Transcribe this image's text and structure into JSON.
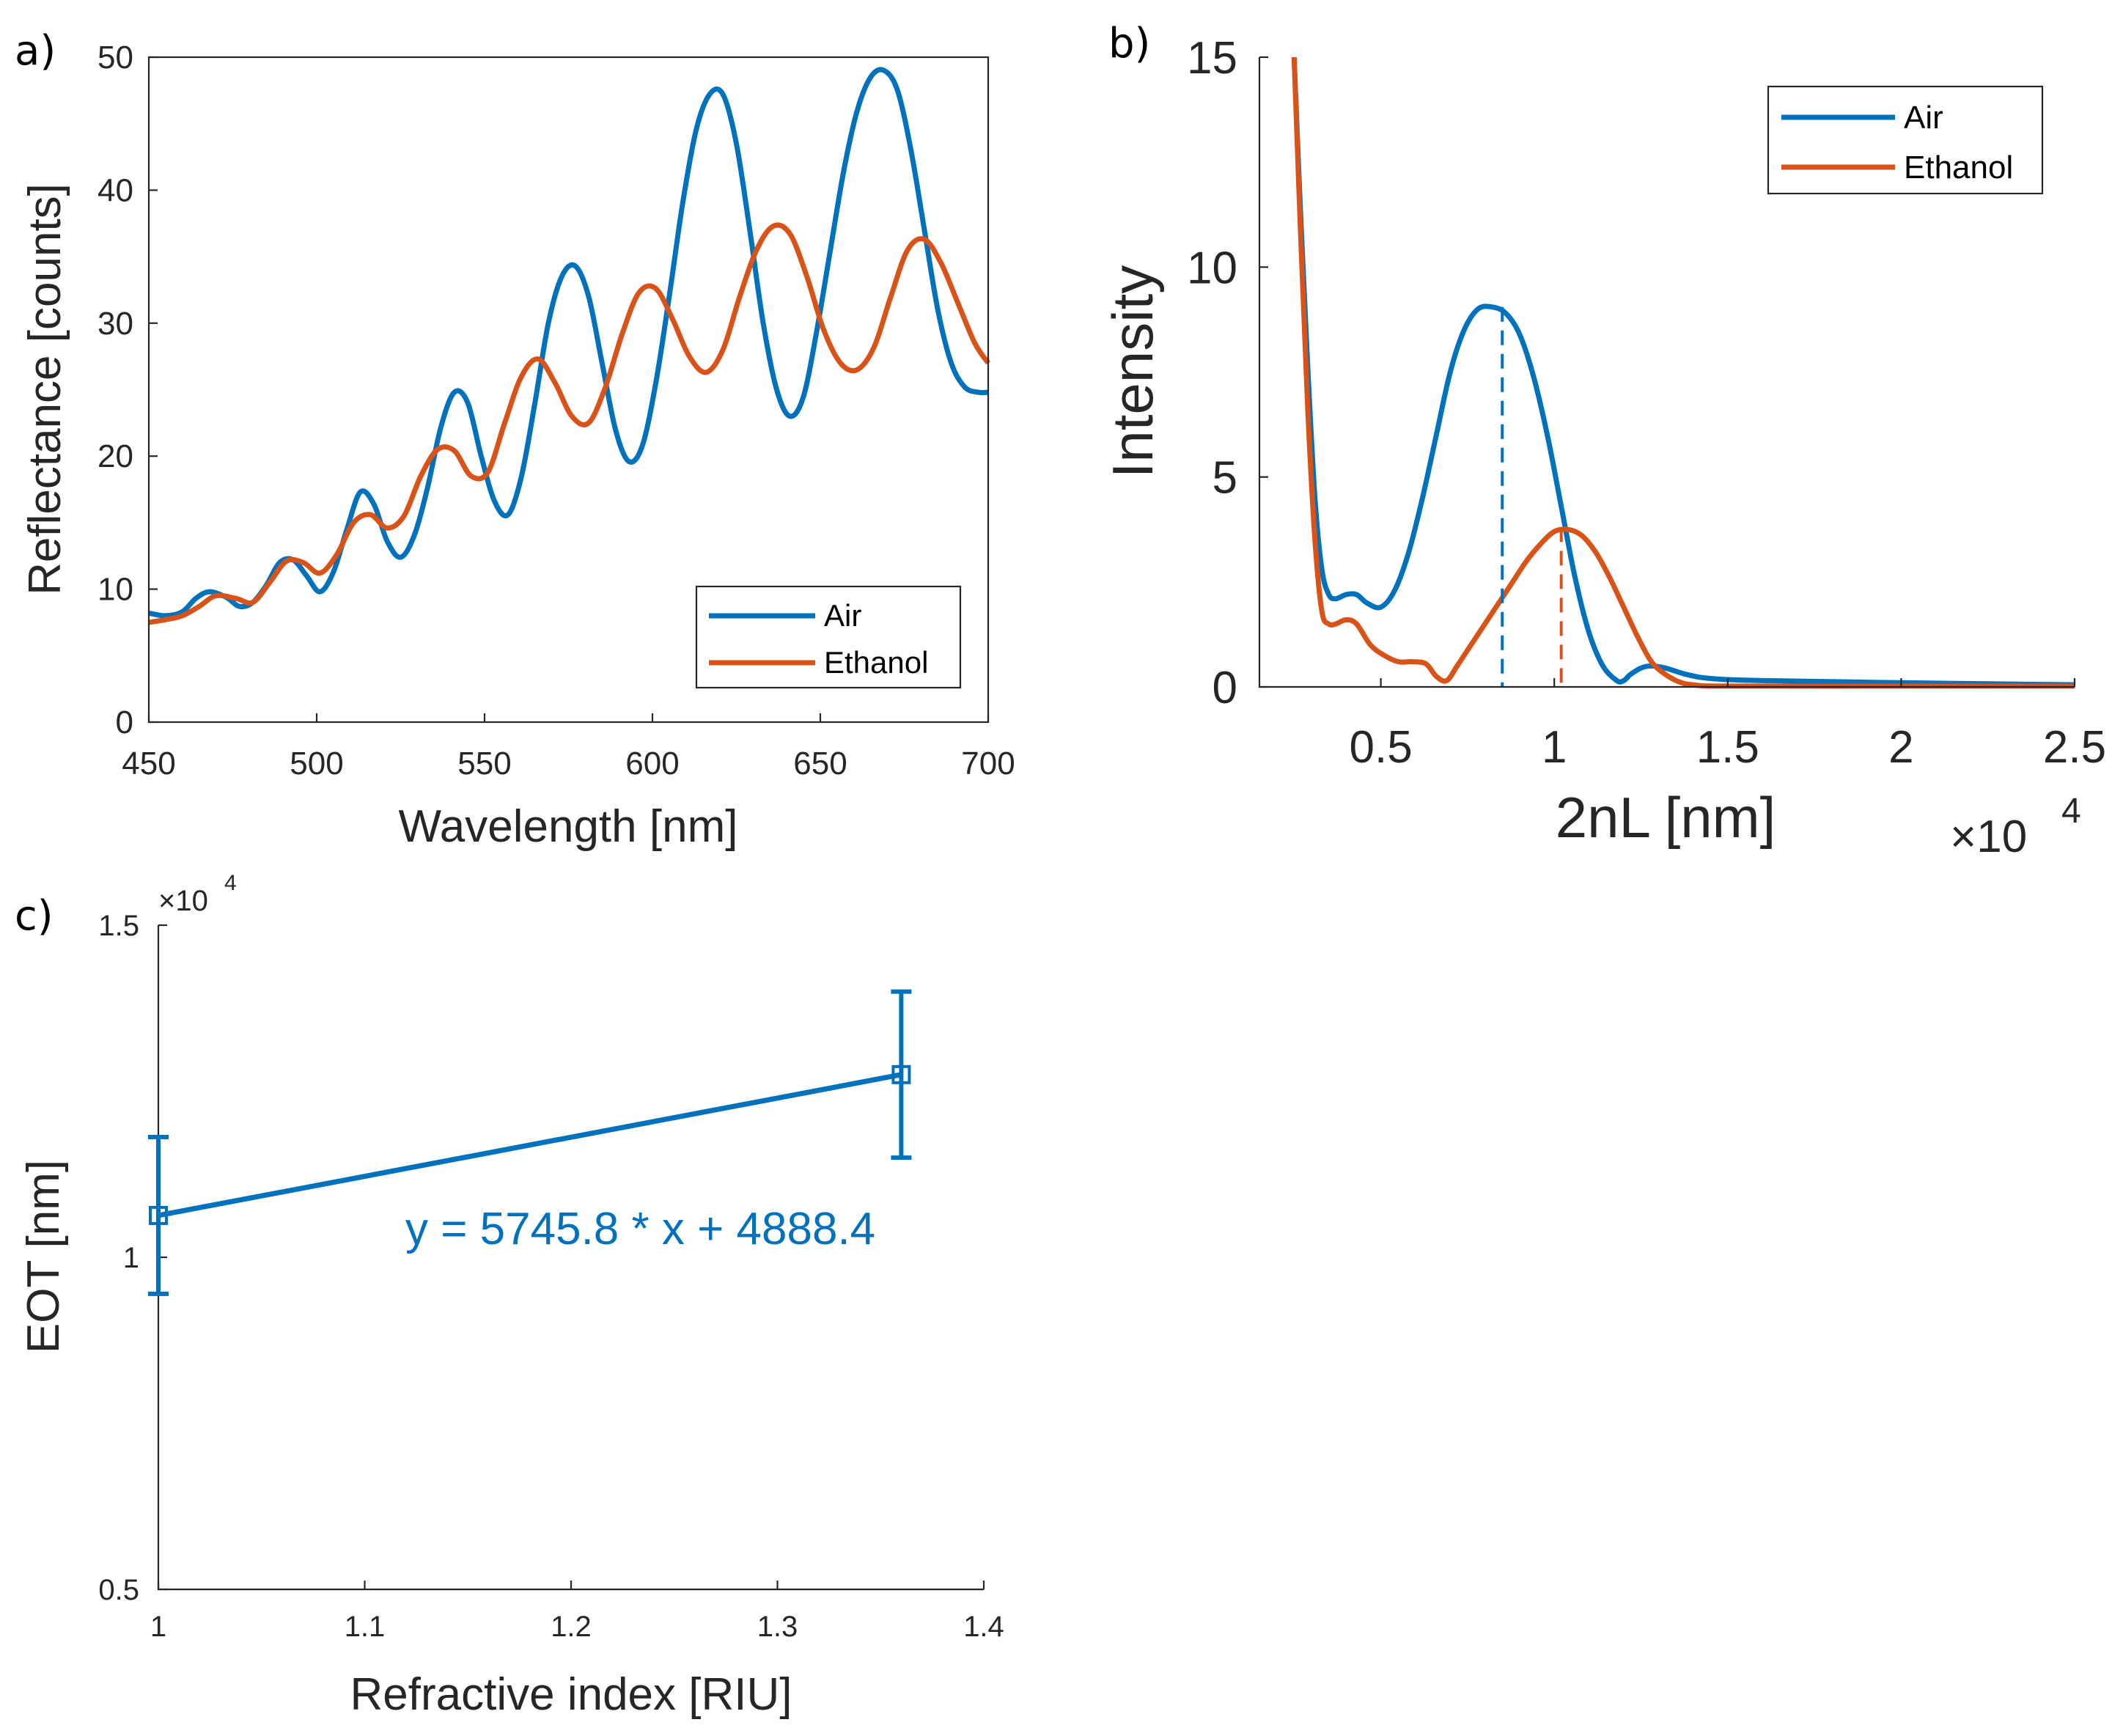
{
  "chart_data": [
    {
      "panel": "a)",
      "type": "line",
      "xlabel": "Wavelength [nm]",
      "ylabel": "Reflectance [counts]",
      "xlim": [
        450,
        700
      ],
      "ylim": [
        0,
        50
      ],
      "xticks": [
        450,
        500,
        550,
        600,
        650,
        700
      ],
      "yticks": [
        0,
        10,
        20,
        30,
        40,
        50
      ],
      "legend": {
        "position": "bottom-right",
        "entries": [
          "Air",
          "Ethanol"
        ]
      },
      "series": [
        {
          "name": "Air",
          "color": "#0072BD",
          "x": [
            450,
            455,
            460,
            464,
            468,
            473,
            477,
            481,
            485,
            489,
            493,
            497,
            501,
            505,
            509,
            513,
            517,
            521,
            525,
            529,
            533,
            537,
            541,
            545,
            549,
            553,
            557,
            561,
            565,
            569,
            573,
            577,
            581,
            585,
            589,
            593,
            597,
            601,
            605,
            609,
            613,
            617,
            621,
            625,
            629,
            633,
            637,
            641,
            645,
            649,
            653,
            657,
            661,
            665,
            669,
            673,
            677,
            681,
            685,
            689,
            693,
            697,
            700
          ],
          "values": [
            8.2,
            8.0,
            8.3,
            9.3,
            9.8,
            9.4,
            8.7,
            9.0,
            10.3,
            12.0,
            12.2,
            11.0,
            9.8,
            11.3,
            14.5,
            17.3,
            16.4,
            13.6,
            12.4,
            14.0,
            17.6,
            22.2,
            24.8,
            24.0,
            20.0,
            16.6,
            15.6,
            18.5,
            24.0,
            30.0,
            33.5,
            34.3,
            32.0,
            27.0,
            22.0,
            19.6,
            20.8,
            25.5,
            32.0,
            39.0,
            44.5,
            47.2,
            47.2,
            43.5,
            37.0,
            30.0,
            25.0,
            23.0,
            24.5,
            29.5,
            35.5,
            41.5,
            46.0,
            48.5,
            49.0,
            47.5,
            43.0,
            37.0,
            31.0,
            27.0,
            25.2,
            24.8,
            24.8
          ]
        },
        {
          "name": "Ethanol",
          "color": "#D95319",
          "x": [
            450,
            455,
            460,
            465,
            470,
            476,
            481,
            486,
            491,
            496,
            501,
            506,
            511,
            516,
            521,
            526,
            531,
            536,
            541,
            546,
            551,
            556,
            561,
            566,
            571,
            576,
            581,
            586,
            591,
            596,
            601,
            606,
            611,
            616,
            621,
            626,
            631,
            636,
            641,
            646,
            651,
            656,
            661,
            666,
            671,
            676,
            681,
            686,
            691,
            696,
            700
          ],
          "values": [
            7.5,
            7.7,
            8.0,
            8.7,
            9.5,
            9.3,
            9.0,
            10.5,
            12.1,
            12.0,
            11.2,
            12.6,
            15.0,
            15.6,
            14.6,
            15.5,
            18.5,
            20.5,
            20.4,
            18.5,
            18.8,
            22.5,
            26.0,
            27.3,
            25.5,
            23.0,
            22.5,
            25.2,
            29.2,
            32.3,
            32.6,
            30.3,
            27.5,
            26.3,
            28.0,
            32.0,
            35.5,
            37.3,
            36.7,
            33.5,
            29.5,
            27.0,
            26.5,
            28.2,
            32.0,
            35.5,
            36.3,
            34.5,
            31.5,
            28.5,
            27.0
          ]
        }
      ]
    },
    {
      "panel": "b)",
      "type": "line",
      "xlabel": "2nL [nm]",
      "ylabel": "Intensity",
      "x_multiplier": "×10",
      "x_multiplier_exp": "4",
      "xlim": [
        0.15,
        2.5
      ],
      "ylim": [
        0,
        15
      ],
      "xticks": [
        0.5,
        1,
        1.5,
        2,
        2.5
      ],
      "xtick_labels": [
        "0.5",
        "1",
        "1.5",
        "2",
        "2.5"
      ],
      "yticks": [
        0,
        5,
        10,
        15
      ],
      "legend": {
        "position": "top-right",
        "entries": [
          "Air",
          "Ethanol"
        ]
      },
      "series": [
        {
          "name": "Air",
          "color": "#0072BD",
          "x": [
            0.25,
            0.27,
            0.29,
            0.31,
            0.33,
            0.35,
            0.37,
            0.4,
            0.43,
            0.46,
            0.5,
            0.54,
            0.58,
            0.62,
            0.66,
            0.7,
            0.74,
            0.78,
            0.82,
            0.86,
            0.9,
            0.94,
            0.98,
            1.02,
            1.06,
            1.1,
            1.14,
            1.18,
            1.2,
            1.22,
            1.25,
            1.28,
            1.32,
            1.38,
            1.45,
            1.6,
            2.0,
            2.5
          ],
          "values": [
            15.0,
            11.0,
            7.5,
            4.5,
            2.8,
            2.2,
            2.1,
            2.2,
            2.2,
            2.0,
            1.9,
            2.3,
            3.2,
            4.5,
            6.0,
            7.5,
            8.5,
            9.0,
            9.05,
            8.9,
            8.4,
            7.4,
            6.0,
            4.3,
            2.6,
            1.3,
            0.5,
            0.15,
            0.15,
            0.3,
            0.45,
            0.5,
            0.45,
            0.3,
            0.2,
            0.15,
            0.1,
            0.05
          ]
        },
        {
          "name": "Ethanol",
          "color": "#D95319",
          "x": [
            0.25,
            0.27,
            0.29,
            0.31,
            0.33,
            0.35,
            0.37,
            0.4,
            0.43,
            0.47,
            0.51,
            0.55,
            0.59,
            0.63,
            0.66,
            0.69,
            0.72,
            0.76,
            0.8,
            0.84,
            0.88,
            0.92,
            0.96,
            1.0,
            1.04,
            1.08,
            1.12,
            1.16,
            1.2,
            1.24,
            1.28,
            1.32,
            1.36,
            1.4,
            1.5,
            2.0,
            2.5
          ],
          "values": [
            15.0,
            10.5,
            6.5,
            3.5,
            1.8,
            1.5,
            1.5,
            1.6,
            1.5,
            1.0,
            0.75,
            0.6,
            0.6,
            0.55,
            0.25,
            0.15,
            0.5,
            1.0,
            1.5,
            2.0,
            2.5,
            3.0,
            3.4,
            3.7,
            3.75,
            3.6,
            3.2,
            2.6,
            1.9,
            1.2,
            0.6,
            0.3,
            0.12,
            0.05,
            0.02,
            0.02,
            0.02
          ]
        }
      ],
      "markers": [
        {
          "name": "Air peak",
          "x": 0.85,
          "y": 9.05,
          "style": "dashed",
          "color": "#0072BD"
        },
        {
          "name": "Ethanol peak",
          "x": 1.02,
          "y": 3.8,
          "style": "dashed",
          "color": "#D95319"
        }
      ]
    },
    {
      "panel": "c)",
      "type": "line",
      "xlabel": "Refractive index [RIU]",
      "ylabel": "EOT [nm]",
      "y_multiplier": "×10",
      "y_multiplier_exp": "4",
      "xlim": [
        1,
        1.4
      ],
      "ylim": [
        0.5,
        1.5
      ],
      "xticks": [
        1,
        1.1,
        1.2,
        1.3,
        1.4
      ],
      "xtick_labels": [
        "1",
        "1.1",
        "1.2",
        "1.3",
        "1.4"
      ],
      "yticks": [
        0.5,
        1,
        1.5
      ],
      "ytick_labels": [
        "0.5",
        "1",
        "1.5"
      ],
      "annotation": "y = 5745.8 * x + 4888.4",
      "series": [
        {
          "name": "EOT",
          "color": "#0072BD",
          "marker": "square",
          "x": [
            1.0,
            1.36
          ],
          "values": [
            1.063,
            1.275
          ],
          "error": [
            0.118,
            0.125
          ]
        }
      ]
    }
  ]
}
